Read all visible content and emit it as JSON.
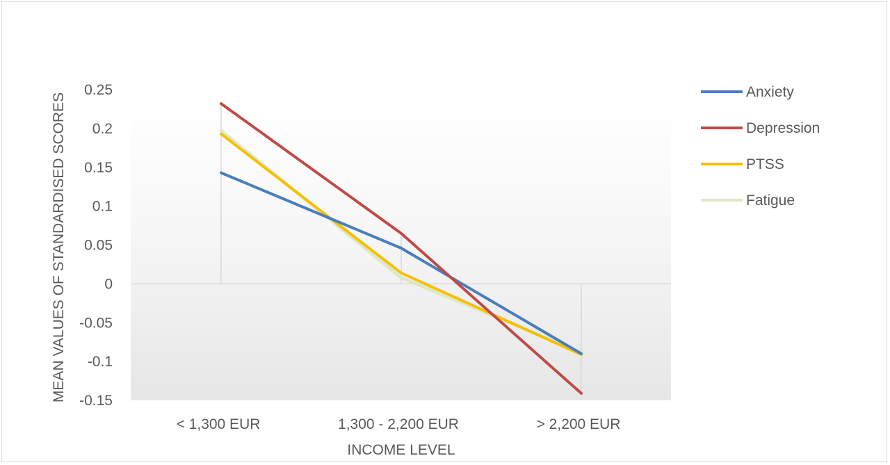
{
  "chart_data": {
    "type": "line",
    "title": "",
    "xlabel": "INCOME LEVEL",
    "ylabel": "MEAN VALUES OF STANDARDISED SCORES",
    "categories": [
      "< 1,300 EUR",
      "1,300  - 2,200 EUR",
      "> 2,200 EUR"
    ],
    "ylim": [
      -0.15,
      0.25
    ],
    "yticks": [
      0.25,
      0.2,
      0.15,
      0.1,
      0.05,
      0,
      -0.05,
      -0.1,
      -0.15
    ],
    "ytick_labels": [
      "0.25",
      "0.2",
      "0.15",
      "0.1",
      "0.05",
      "0",
      "-0.05",
      "-0.1",
      "-0.15"
    ],
    "grid": false,
    "legend_position": "right",
    "series": [
      {
        "name": "Anxiety",
        "values": [
          0.143,
          0.046,
          -0.09
        ],
        "color": "#4a7ebb"
      },
      {
        "name": "Depression",
        "values": [
          0.232,
          0.065,
          -0.141
        ],
        "color": "#be4b48"
      },
      {
        "name": "PTSS",
        "values": [
          0.193,
          0.014,
          -0.091
        ],
        "color": "#f5c000"
      },
      {
        "name": "Fatigue",
        "values": [
          0.197,
          0.008,
          -0.088
        ],
        "color": "#dde7c6"
      }
    ]
  }
}
